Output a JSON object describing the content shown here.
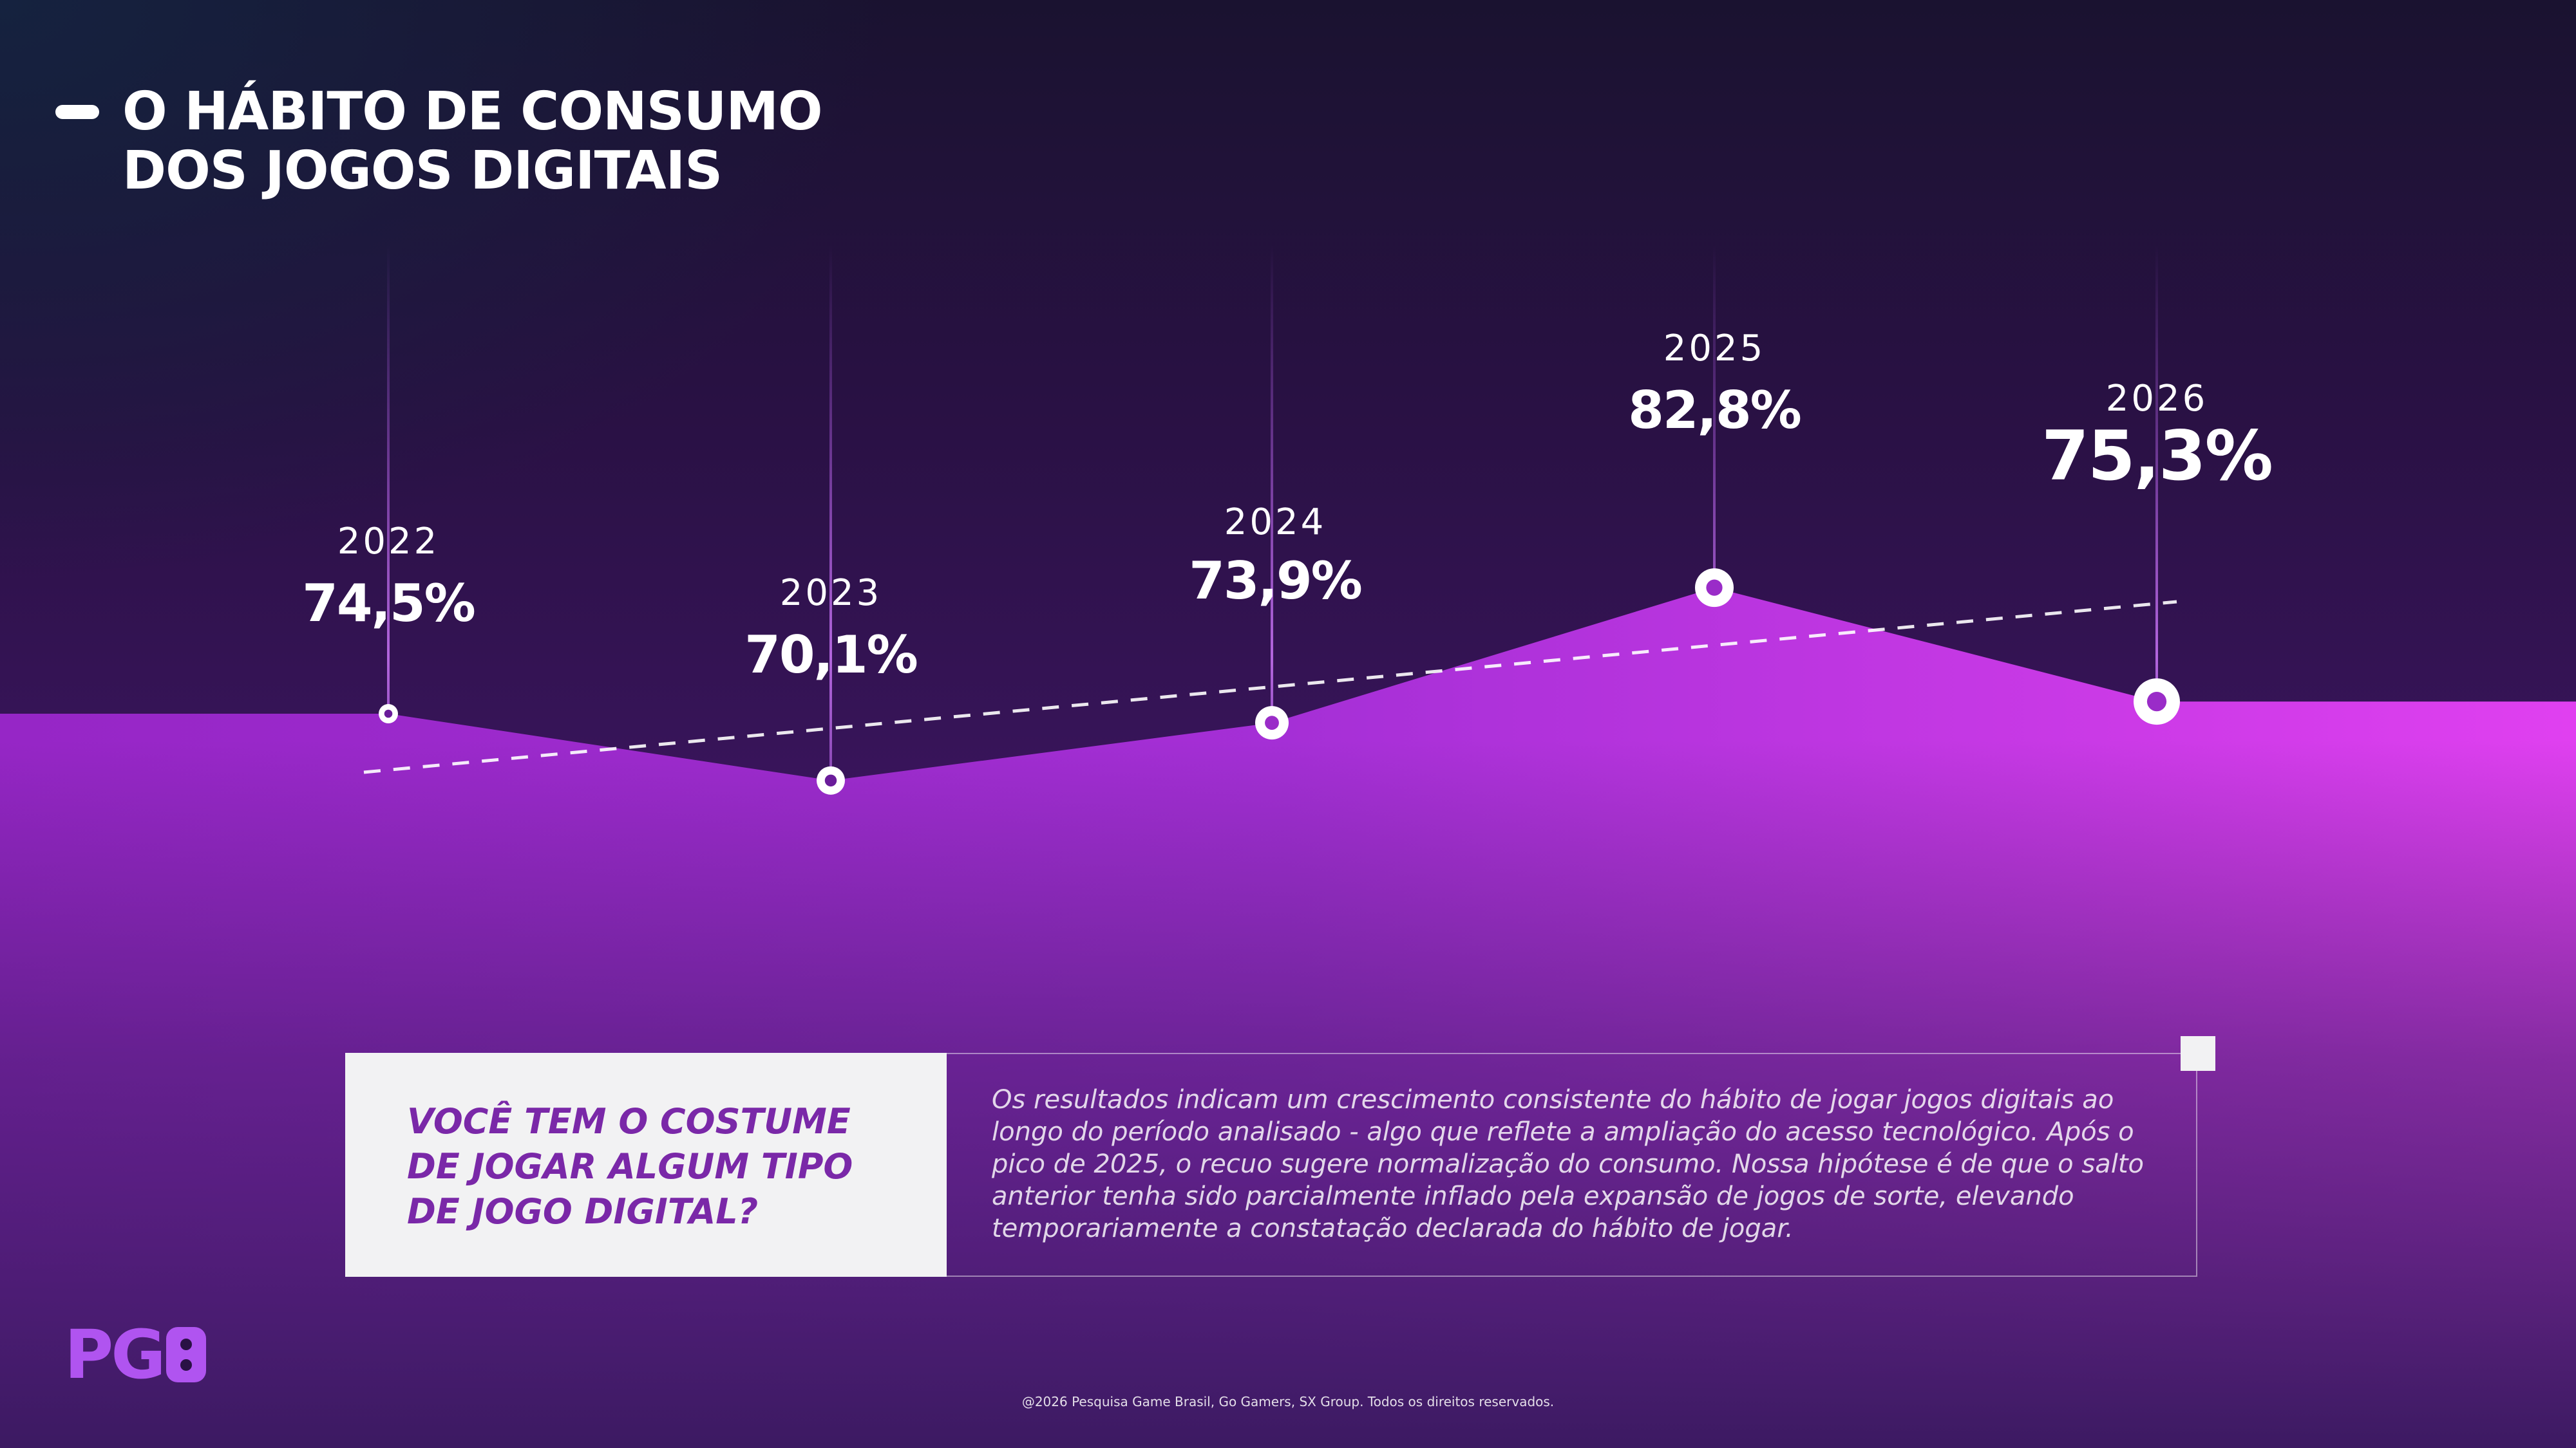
{
  "title": {
    "line1": "O HÁBITO DE CONSUMO",
    "line2": "DOS JOGOS DIGITAIS"
  },
  "chart_data": {
    "type": "area",
    "x": [
      "2022",
      "2023",
      "2024",
      "2025",
      "2026"
    ],
    "values": [
      74.5,
      70.1,
      73.9,
      82.8,
      75.3
    ],
    "value_labels": [
      "74,5%",
      "70,1%",
      "73,9%",
      "82,8%",
      "75,3%"
    ],
    "unit": "%",
    "trendline": {
      "style": "dashed",
      "start": 71.3,
      "end": 77.8
    },
    "grid": false,
    "legend": "none",
    "colors": {
      "area_top": "#9b32d8",
      "area_right": "#e040f0",
      "line_marker": "#ffffff"
    }
  },
  "question": "VOCÊ TEM O COSTUME DE JOGAR ALGUM TIPO DE JOGO DIGITAL?",
  "description": "Os resultados indicam um crescimento consistente do hábito de jogar jogos digitais ao longo do período analisado - algo que reflete a ampliação do acesso tecnológico. Após o pico de 2025, o recuo sugere normalização do consumo. Nossa hipótese é de que o salto anterior tenha sido parcialmente inflado pela expansão de jogos de sorte, elevando temporariamente a constatação declarada do hábito de jogar.",
  "logo": {
    "text": "PG",
    "icon": "gamepad-icon"
  },
  "footer": "@2026 Pesquisa Game Brasil, Go Gamers, SX Group. Todos os direitos reservados."
}
